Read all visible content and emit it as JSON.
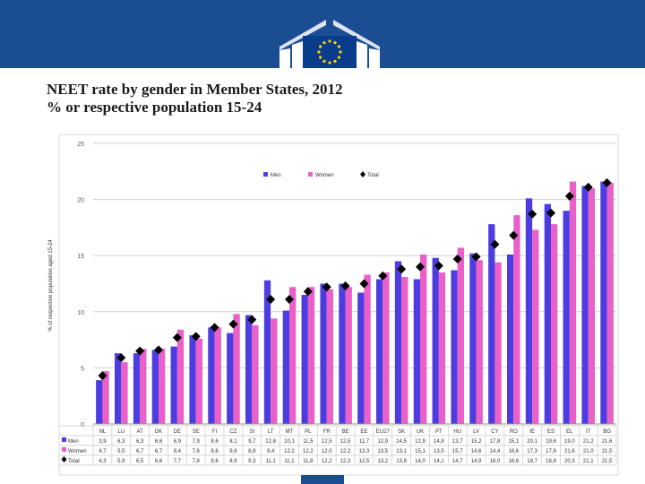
{
  "header": {
    "logo_alt": "European Commission"
  },
  "slide": {
    "title": "NEET rate by gender in Member States, 2012",
    "subtitle": "% or respective population 15-24"
  },
  "colors": {
    "banner": "#1b4d93",
    "men": "#4d3de0",
    "women": "#e860c8",
    "total": "#000000"
  },
  "chart_data": {
    "type": "bar",
    "title": "",
    "ylabel": "% of respective population aged 15-24",
    "xlabel": "",
    "ylim": [
      0,
      25
    ],
    "yticks": [
      0,
      5,
      10,
      15,
      20,
      25
    ],
    "grid": true,
    "legend_position": "top-center",
    "categories": [
      "NL",
      "LU",
      "AT",
      "DK",
      "DE",
      "SE",
      "FI",
      "CZ",
      "SI",
      "LT",
      "MT",
      "PL",
      "FR",
      "BE",
      "EE",
      "EU27",
      "SK",
      "UK",
      "PT",
      "HU",
      "LV",
      "CY",
      "RO",
      "IE",
      "ES",
      "EL",
      "IT",
      "BG"
    ],
    "series": [
      {
        "name": "Men",
        "type": "bar",
        "table_label": "Men",
        "values": [
          3.9,
          6.3,
          6.3,
          6.6,
          6.9,
          7.9,
          8.6,
          8.1,
          9.7,
          12.8,
          10.1,
          11.5,
          12.5,
          12.5,
          11.7,
          12.9,
          14.5,
          12.9,
          14.8,
          13.7,
          15.2,
          17.8,
          15.1,
          20.1,
          19.6,
          19.0,
          21.2,
          21.6
        ],
        "labels": [
          "3,9",
          "6,3",
          "6,3",
          "6,6",
          "6,9",
          "7,9",
          "8,6",
          "8,1",
          "9,7",
          "12,8",
          "10,1",
          "11,5",
          "12,5",
          "12,5",
          "11,7",
          "12,9",
          "14,5",
          "12,9",
          "14,8",
          "13,7",
          "15,2",
          "17,8",
          "15,1",
          "20,1",
          "19,6",
          "19,0",
          "21,2",
          "21,6"
        ]
      },
      {
        "name": "Women",
        "type": "bar",
        "table_label": "Women",
        "values": [
          4.7,
          5.5,
          6.7,
          6.7,
          8.4,
          7.6,
          8.6,
          9.8,
          8.8,
          9.4,
          12.2,
          12.2,
          12.0,
          12.2,
          13.3,
          13.5,
          13.1,
          15.1,
          13.5,
          15.7,
          14.6,
          14.4,
          18.6,
          17.3,
          17.8,
          21.6,
          21.0,
          21.5
        ],
        "labels": [
          "4,7",
          "5,5",
          "6,7",
          "6,7",
          "8,4",
          "7,6",
          "8,6",
          "9,8",
          "8,8",
          "9,4",
          "12,2",
          "12,2",
          "12,0",
          "12,2",
          "13,3",
          "13,5",
          "13,1",
          "15,1",
          "13,5",
          "15,7",
          "14,6",
          "14,4",
          "18,6",
          "17,3",
          "17,8",
          "21,6",
          "21,0",
          "21,5"
        ]
      },
      {
        "name": "Total",
        "type": "marker",
        "table_label": "Total",
        "values": [
          4.3,
          5.9,
          6.5,
          6.6,
          7.7,
          7.8,
          8.6,
          8.9,
          9.3,
          11.1,
          11.1,
          11.8,
          12.2,
          12.3,
          12.5,
          13.2,
          13.8,
          14.0,
          14.1,
          14.7,
          14.9,
          16.0,
          16.8,
          18.7,
          18.8,
          20.3,
          21.1,
          21.5
        ],
        "labels": [
          "4,3",
          "5,9",
          "6,5",
          "6,6",
          "7,7",
          "7,8",
          "8,6",
          "8,9",
          "9,3",
          "11,1",
          "11,1",
          "11,8",
          "12,2",
          "12,3",
          "12,5",
          "13,2",
          "13,8",
          "14,0",
          "14,1",
          "14,7",
          "14,9",
          "16,0",
          "16,8",
          "18,7",
          "18,8",
          "20,3",
          "21,1",
          "21,5"
        ]
      }
    ]
  }
}
